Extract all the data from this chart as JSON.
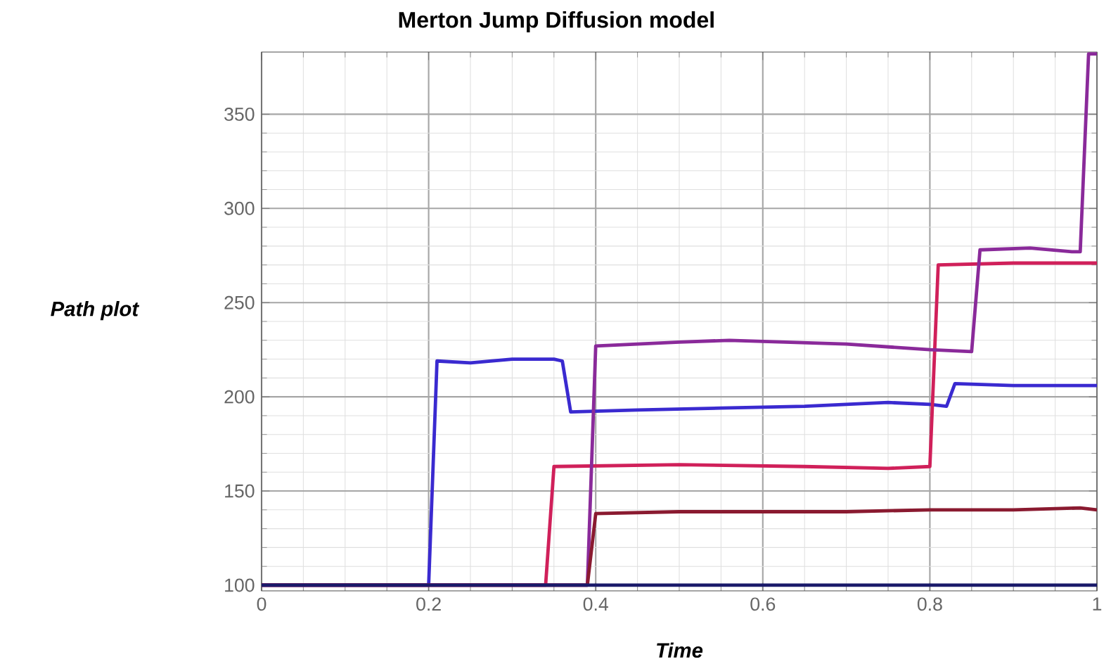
{
  "chart_data": {
    "type": "line",
    "title": "Merton Jump Diffusion model",
    "xlabel": "Time",
    "ylabel": "Path plot",
    "xlim": [
      0,
      1
    ],
    "ylim": [
      97,
      383
    ],
    "xticks": [
      0,
      0.2,
      0.4,
      0.6,
      0.8,
      1
    ],
    "yticks": [
      100,
      150,
      200,
      250,
      300,
      350
    ],
    "grid": true,
    "series": [
      {
        "color": "#3a2ad0",
        "x": [
          0,
          0.2,
          0.21,
          0.25,
          0.3,
          0.35,
          0.36,
          0.37,
          0.45,
          0.55,
          0.65,
          0.75,
          0.8,
          0.82,
          0.83,
          0.9,
          1
        ],
        "values": [
          100,
          100,
          219,
          218,
          220,
          220,
          219,
          192,
          193,
          194,
          195,
          197,
          196,
          195,
          207,
          206,
          206
        ]
      },
      {
        "color": "#d0205a",
        "x": [
          0,
          0.34,
          0.35,
          0.5,
          0.65,
          0.75,
          0.8,
          0.81,
          0.9,
          1
        ],
        "values": [
          100,
          100,
          163,
          164,
          163,
          162,
          163,
          270,
          271,
          271
        ]
      },
      {
        "color": "#8a2a9a",
        "x": [
          0,
          0.39,
          0.4,
          0.5,
          0.56,
          0.7,
          0.8,
          0.85,
          0.86,
          0.92,
          0.97,
          0.98,
          0.99,
          1
        ],
        "values": [
          100,
          100,
          227,
          229,
          230,
          228,
          225,
          224,
          278,
          279,
          277,
          277,
          382,
          382
        ]
      },
      {
        "color": "#8a1a30",
        "x": [
          0,
          0.39,
          0.4,
          0.5,
          0.6,
          0.7,
          0.8,
          0.9,
          0.98,
          1
        ],
        "values": [
          100,
          100,
          138,
          139,
          139,
          139,
          140,
          140,
          141,
          140
        ]
      },
      {
        "color": "#1a1a6a",
        "x": [
          0,
          0.5,
          1
        ],
        "values": [
          100,
          100,
          100
        ]
      }
    ]
  }
}
